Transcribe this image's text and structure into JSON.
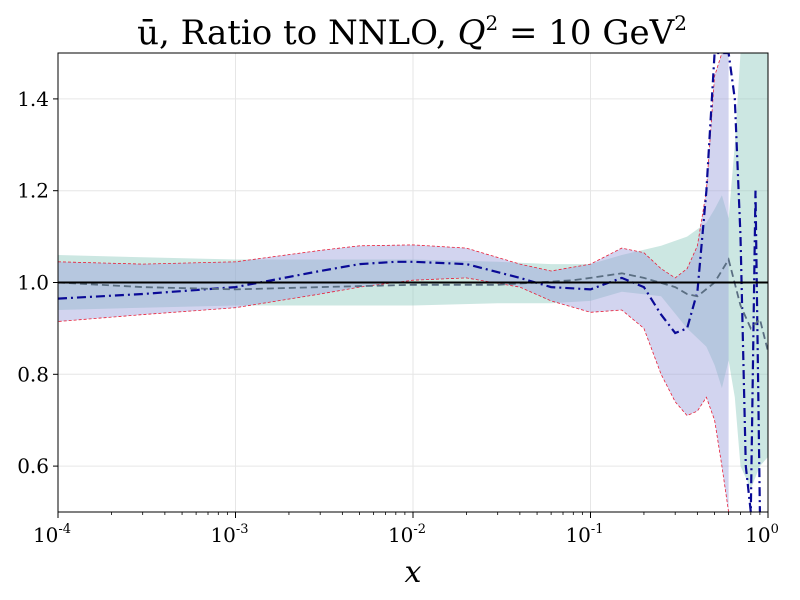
{
  "chart_data": {
    "type": "line",
    "title": "ū, Ratio to NNLO, Q² = 10 GeV²",
    "title_parts": {
      "var": "ū",
      "mid": ", Ratio to NNLO, ",
      "q": "Q",
      "eq": " = 10 GeV"
    },
    "xlabel": "x",
    "ylabel": "",
    "xscale": "log",
    "xlim": [
      0.0001,
      1
    ],
    "ylim": [
      0.5,
      1.5
    ],
    "grid": true,
    "xticks": [
      {
        "value": 0.0001,
        "base": "10",
        "exp": "-4"
      },
      {
        "value": 0.001,
        "base": "10",
        "exp": "-3"
      },
      {
        "value": 0.01,
        "base": "10",
        "exp": "-2"
      },
      {
        "value": 0.1,
        "base": "10",
        "exp": "-1"
      },
      {
        "value": 1,
        "base": "10",
        "exp": "0"
      }
    ],
    "yticks": [
      {
        "value": 0.6,
        "label": "0.6"
      },
      {
        "value": 0.8,
        "label": "0.8"
      },
      {
        "value": 1.0,
        "label": "1.0"
      },
      {
        "value": 1.2,
        "label": "1.2"
      },
      {
        "value": 1.4,
        "label": "1.4"
      }
    ],
    "reference_line": {
      "y": 1.0,
      "color": "#000000"
    },
    "bands": [
      {
        "name": "teal band",
        "color": "#8fc9bf",
        "x": [
          0.0001,
          0.0003,
          0.001,
          0.003,
          0.01,
          0.03,
          0.06,
          0.1,
          0.15,
          0.25,
          0.35,
          0.45,
          0.5,
          0.55,
          0.6,
          0.65,
          0.7,
          0.8,
          0.9,
          1.0
        ],
        "upper": [
          1.06,
          1.055,
          1.05,
          1.05,
          1.05,
          1.045,
          1.04,
          1.04,
          1.06,
          1.08,
          1.1,
          1.13,
          1.16,
          1.19,
          1.14,
          1.3,
          1.5,
          1.5,
          1.5,
          1.5
        ],
        "lower": [
          0.94,
          0.945,
          0.95,
          0.95,
          0.95,
          0.955,
          0.955,
          0.96,
          0.98,
          0.97,
          0.9,
          0.86,
          0.82,
          0.77,
          0.83,
          0.75,
          0.6,
          0.55,
          0.6,
          0.62
        ]
      },
      {
        "name": "purple band",
        "color": "#9b9fdc",
        "edge_color": "#e8203a",
        "x": [
          0.0001,
          0.0003,
          0.001,
          0.003,
          0.005,
          0.01,
          0.02,
          0.04,
          0.06,
          0.1,
          0.15,
          0.2,
          0.25,
          0.3,
          0.35,
          0.4,
          0.45,
          0.5,
          0.55,
          0.6
        ],
        "upper": [
          1.045,
          1.04,
          1.045,
          1.07,
          1.08,
          1.082,
          1.075,
          1.04,
          1.025,
          1.04,
          1.075,
          1.065,
          1.03,
          1.01,
          1.03,
          1.08,
          1.2,
          1.45,
          1.5,
          1.5
        ],
        "lower": [
          0.915,
          0.93,
          0.945,
          0.975,
          0.99,
          1.005,
          1.01,
          0.99,
          0.96,
          0.935,
          0.94,
          0.9,
          0.8,
          0.74,
          0.71,
          0.72,
          0.75,
          0.7,
          0.6,
          0.5
        ]
      }
    ],
    "series": [
      {
        "name": "dash-dot blue",
        "color": "#0a0a96",
        "style": "dashdot",
        "x": [
          0.0001,
          0.0003,
          0.001,
          0.003,
          0.005,
          0.008,
          0.01,
          0.02,
          0.04,
          0.06,
          0.1,
          0.15,
          0.2,
          0.25,
          0.3,
          0.35,
          0.4,
          0.45,
          0.5,
          0.55,
          0.6,
          0.65,
          0.7,
          0.75,
          0.8,
          0.85,
          0.9
        ],
        "y": [
          0.965,
          0.975,
          0.99,
          1.025,
          1.04,
          1.045,
          1.045,
          1.04,
          1.01,
          0.99,
          0.985,
          1.01,
          0.99,
          0.93,
          0.89,
          0.9,
          0.98,
          1.2,
          1.5,
          1.5,
          1.5,
          1.4,
          1.1,
          0.6,
          0.5,
          1.2,
          0.5
        ]
      },
      {
        "name": "dashed grey",
        "color": "#5a6e82",
        "style": "dashed",
        "x": [
          0.0001,
          0.0003,
          0.001,
          0.003,
          0.01,
          0.03,
          0.05,
          0.08,
          0.1,
          0.15,
          0.2,
          0.3,
          0.35,
          0.4,
          0.5,
          0.6,
          0.7,
          0.8,
          0.9,
          1.0
        ],
        "y": [
          1.0,
          0.99,
          0.985,
          0.99,
          0.995,
          0.995,
          1.0,
          1.005,
          1.01,
          1.02,
          1.01,
          0.99,
          0.975,
          0.97,
          1.0,
          1.05,
          0.95,
          0.9,
          0.92,
          0.85
        ]
      }
    ]
  }
}
